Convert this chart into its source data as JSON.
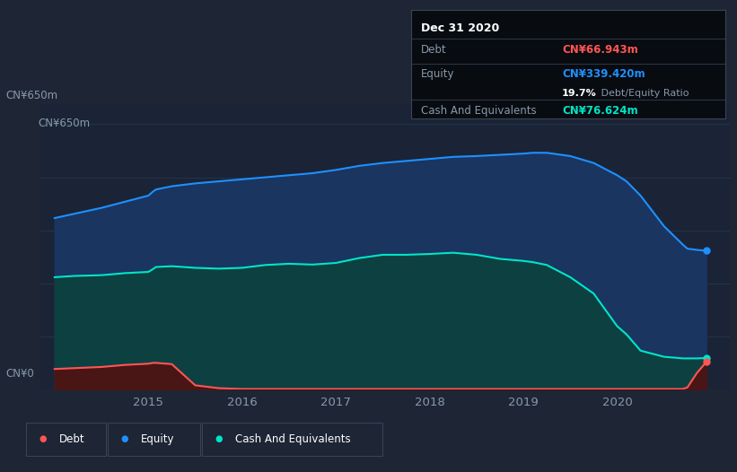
{
  "background_color": "#1e2535",
  "plot_bg_color": "#1a2436",
  "ylabel_top": "CN¥650m",
  "ylabel_bottom": "CN¥0",
  "equity_color": "#1e90ff",
  "equity_fill": "#1a3560",
  "debt_color": "#ff5555",
  "debt_fill": "#4a1515",
  "cash_color": "#00e5c8",
  "cash_fill": "#0d4040",
  "tooltip": {
    "date": "Dec 31 2020",
    "debt_label": "Debt",
    "debt_value": "CN¥66.943m",
    "equity_label": "Equity",
    "equity_value": "CN¥339.420m",
    "ratio_bold": "19.7%",
    "ratio_rest": " Debt/Equity Ratio",
    "cash_label": "Cash And Equivalents",
    "cash_value": "CN¥76.624m"
  },
  "years": [
    2014.0,
    2014.2,
    2014.5,
    2014.75,
    2015.0,
    2015.05,
    2015.08,
    2015.25,
    2015.5,
    2015.75,
    2016.0,
    2016.25,
    2016.5,
    2016.75,
    2017.0,
    2017.25,
    2017.5,
    2017.75,
    2018.0,
    2018.25,
    2018.5,
    2018.75,
    2019.0,
    2019.1,
    2019.25,
    2019.5,
    2019.75,
    2020.0,
    2020.1,
    2020.25,
    2020.5,
    2020.7,
    2020.75,
    2020.85,
    2020.95
  ],
  "equity": [
    420,
    430,
    445,
    460,
    475,
    485,
    490,
    498,
    505,
    510,
    515,
    520,
    525,
    530,
    538,
    548,
    555,
    560,
    565,
    570,
    572,
    575,
    578,
    580,
    580,
    572,
    555,
    525,
    510,
    475,
    400,
    355,
    345,
    342,
    340
  ],
  "cash": [
    275,
    278,
    280,
    285,
    288,
    295,
    300,
    302,
    298,
    296,
    298,
    305,
    308,
    306,
    310,
    322,
    330,
    330,
    332,
    335,
    330,
    320,
    315,
    312,
    305,
    275,
    235,
    155,
    135,
    95,
    80,
    76,
    76,
    76,
    77
  ],
  "debt": [
    50,
    52,
    55,
    60,
    63,
    65,
    65,
    62,
    10,
    3,
    1,
    1,
    1,
    1,
    1,
    1,
    1,
    1,
    1,
    1,
    1,
    1,
    1,
    1,
    1,
    1,
    1,
    1,
    1,
    1,
    1,
    1,
    5,
    40,
    67
  ],
  "xlim": [
    2013.85,
    2021.2
  ],
  "ylim": [
    0,
    700
  ],
  "xticks": [
    2015,
    2016,
    2017,
    2018,
    2019,
    2020
  ],
  "gridline_color": "#2a3a50",
  "text_color": "#8899aa"
}
